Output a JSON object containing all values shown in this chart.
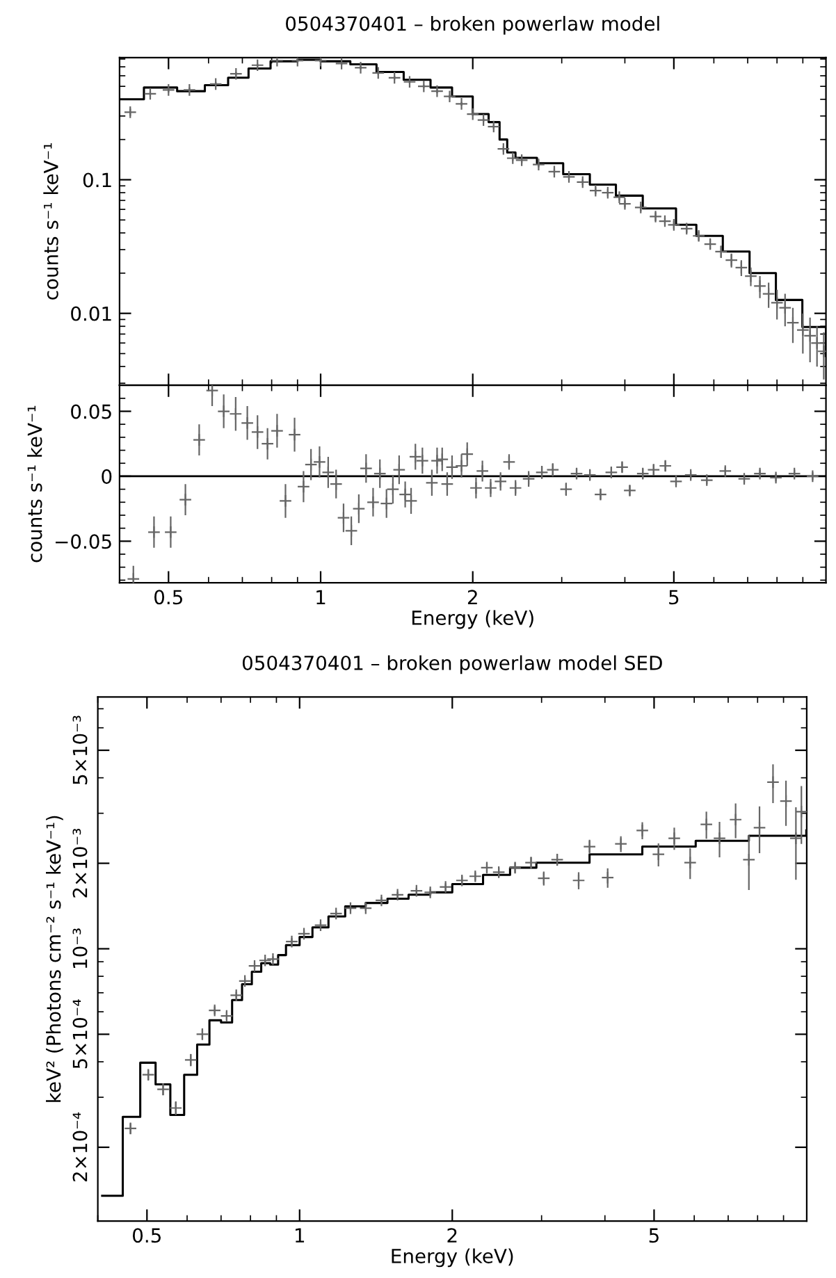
{
  "chart_data": [
    {
      "type": "scatter",
      "title": "0504370401 – broken powerlaw model",
      "ylabel": "counts s⁻¹ keV⁻¹",
      "log": "xy",
      "grid": false,
      "tick_labels": "y",
      "xlim": [
        0.4,
        10
      ],
      "xticks": [
        {
          "value": 0.5,
          "label": null
        },
        {
          "value": 1,
          "label": null
        },
        {
          "value": 2,
          "label": null
        },
        {
          "value": 5,
          "label": null
        }
      ],
      "ylim": [
        0.0029,
        0.82
      ],
      "yticks": [
        0.01,
        0.1
      ],
      "series": [
        {
          "type": "step",
          "color": "#000000",
          "x": [
            0.4,
            0.447,
            0.52,
            0.59,
            0.656,
            0.72,
            0.796,
            0.9,
            1.0,
            1.145,
            1.29,
            1.46,
            1.65,
            1.82,
            2.0,
            2.15,
            2.26,
            2.34,
            2.43,
            2.68,
            3.02,
            3.41,
            3.84,
            4.34,
            5.05,
            5.54,
            6.25,
            7.06,
            7.96,
            8.98,
            10.0
          ],
          "values": [
            0.4,
            0.49,
            0.46,
            0.51,
            0.58,
            0.68,
            0.77,
            0.79,
            0.77,
            0.73,
            0.64,
            0.56,
            0.49,
            0.42,
            0.31,
            0.27,
            0.2,
            0.16,
            0.146,
            0.133,
            0.11,
            0.092,
            0.076,
            0.061,
            0.046,
            0.038,
            0.029,
            0.02,
            0.0126,
            0.0079,
            0.0048
          ]
        },
        {
          "color": "#666666",
          "marker": "cross",
          "x": [
            0.42,
            0.46,
            0.5,
            0.55,
            0.62,
            0.68,
            0.75,
            0.82,
            0.9,
            1.0,
            1.1,
            1.2,
            1.3,
            1.4,
            1.5,
            1.6,
            1.7,
            1.8,
            1.9,
            2.0,
            2.1,
            2.2,
            2.3,
            2.4,
            2.5,
            2.7,
            2.9,
            3.1,
            3.3,
            3.5,
            3.7,
            3.9,
            4.0,
            4.3,
            4.6,
            4.8,
            5.0,
            5.3,
            5.6,
            5.9,
            6.2,
            6.5,
            6.8,
            7.1,
            7.4,
            7.7,
            8.0,
            8.3,
            8.6,
            9.0,
            9.3,
            9.6,
            9.9
          ],
          "values": [
            0.32,
            0.44,
            0.47,
            0.47,
            0.52,
            0.62,
            0.72,
            0.78,
            0.78,
            0.78,
            0.74,
            0.69,
            0.63,
            0.58,
            0.54,
            0.5,
            0.46,
            0.42,
            0.37,
            0.31,
            0.28,
            0.25,
            0.17,
            0.145,
            0.14,
            0.13,
            0.115,
            0.105,
            0.096,
            0.083,
            0.08,
            0.074,
            0.066,
            0.062,
            0.053,
            0.049,
            0.046,
            0.043,
            0.038,
            0.033,
            0.029,
            0.025,
            0.022,
            0.019,
            0.016,
            0.014,
            0.012,
            0.011,
            0.0085,
            0.0075,
            0.0068,
            0.006,
            0.0052
          ],
          "errors": [
            0.02,
            0.02,
            0.02,
            0.02,
            0.02,
            0.02,
            0.02,
            0.02,
            0.02,
            0.02,
            0.02,
            0.02,
            0.02,
            0.02,
            0.015,
            0.015,
            0.015,
            0.012,
            0.012,
            0.01,
            0.01,
            0.01,
            0.008,
            0.007,
            0.007,
            0.006,
            0.006,
            0.005,
            0.005,
            0.005,
            0.005,
            0.004,
            0.004,
            0.004,
            0.004,
            0.003,
            0.003,
            0.003,
            0.003,
            0.003,
            0.003,
            0.003,
            0.003,
            0.003,
            0.003,
            0.003,
            0.003,
            0.003,
            0.0025,
            0.0025,
            0.0025,
            0.002,
            0.002
          ]
        }
      ]
    },
    {
      "type": "scatter",
      "xlabel": "Energy (keV)",
      "ylabel": "counts s⁻¹ keV⁻¹",
      "log": "x",
      "grid": false,
      "xlim": [
        0.4,
        10
      ],
      "xticks": [
        0.5,
        1,
        2,
        5
      ],
      "ylim": [
        -0.082,
        0.07
      ],
      "yticks": [
        {
          "value": -0.05,
          "label": "−0.05"
        },
        0,
        0.05
      ],
      "ref_lines": [
        {
          "axis": "y",
          "value": 0,
          "color": "#000000"
        }
      ],
      "series": [
        {
          "color": "#666666",
          "marker": "cross",
          "x": [
            0.426,
            0.468,
            0.505,
            0.54,
            0.575,
            0.61,
            0.643,
            0.679,
            0.716,
            0.75,
            0.785,
            0.82,
            0.852,
            0.888,
            0.925,
            0.957,
            0.995,
            1.035,
            1.073,
            1.11,
            1.15,
            1.19,
            1.23,
            1.27,
            1.31,
            1.35,
            1.39,
            1.43,
            1.47,
            1.51,
            1.54,
            1.59,
            1.66,
            1.7,
            1.74,
            1.78,
            1.82,
            1.9,
            1.95,
            2.03,
            2.09,
            2.17,
            2.27,
            2.36,
            2.43,
            2.58,
            2.74,
            2.88,
            3.06,
            3.21,
            3.41,
            3.58,
            3.76,
            3.95,
            4.09,
            4.34,
            4.56,
            4.81,
            5.05,
            5.4,
            5.81,
            6.32,
            6.89,
            7.4,
            7.96,
            8.66,
            9.41
          ],
          "values": [
            -0.079,
            -0.043,
            -0.043,
            -0.018,
            0.028,
            0.066,
            0.05,
            0.048,
            0.041,
            0.034,
            0.025,
            0.035,
            -0.019,
            0.032,
            -0.008,
            0.009,
            0.011,
            0.003,
            -0.006,
            -0.032,
            -0.042,
            -0.025,
            0.006,
            -0.02,
            0.002,
            -0.021,
            -0.01,
            0.005,
            -0.014,
            -0.019,
            0.015,
            0.012,
            -0.005,
            0.012,
            0.013,
            -0.006,
            0.007,
            0.008,
            0.017,
            -0.009,
            0.004,
            -0.009,
            -0.004,
            0.011,
            -0.009,
            -0.002,
            0.003,
            0.005,
            -0.01,
            0.002,
            0.001,
            -0.014,
            0.003,
            0.007,
            -0.011,
            0.002,
            0.005,
            0.008,
            -0.004,
            0.001,
            -0.003,
            0.004,
            -0.002,
            0.002,
            -0.001,
            0.002,
            0.0
          ],
          "errors": [
            0.01,
            0.012,
            0.012,
            0.012,
            0.012,
            0.012,
            0.013,
            0.013,
            0.013,
            0.013,
            0.012,
            0.013,
            0.013,
            0.013,
            0.012,
            0.012,
            0.012,
            0.012,
            0.011,
            0.011,
            0.011,
            0.011,
            0.011,
            0.011,
            0.011,
            0.011,
            0.011,
            0.011,
            0.01,
            0.01,
            0.01,
            0.01,
            0.01,
            0.01,
            0.009,
            0.009,
            0.009,
            0.009,
            0.009,
            0.008,
            0.008,
            0.007,
            0.007,
            0.006,
            0.006,
            0.006,
            0.005,
            0.005,
            0.005,
            0.004,
            0.004,
            0.004,
            0.004,
            0.004,
            0.004,
            0.004,
            0.004,
            0.004,
            0.003,
            0.003,
            0.003,
            0.003,
            0.003,
            0.003,
            0.003,
            0.003,
            0.003
          ]
        }
      ]
    },
    {
      "type": "scatter",
      "title": "0504370401 – broken powerlaw model SED",
      "xlabel": "Energy (keV)",
      "ylabel": "keV² (Photons cm⁻² s⁻¹ keV⁻¹)",
      "log": "xy",
      "grid": false,
      "xlim": [
        0.4,
        10
      ],
      "xticks": [
        0.5,
        1,
        2,
        5
      ],
      "ylim": [
        0.00011,
        0.0077
      ],
      "yticks": [
        {
          "value": 0.0002,
          "label": "2×10⁻⁴"
        },
        {
          "value": 0.0005,
          "label": "5×10⁻⁴"
        },
        {
          "value": 0.001,
          "label": "10⁻³"
        },
        {
          "value": 0.002,
          "label": "2×10⁻³"
        },
        {
          "value": 0.005,
          "label": "5×10⁻³"
        }
      ],
      "series": [
        {
          "type": "step",
          "color": "#000000",
          "x": [
            0.408,
            0.448,
            0.485,
            0.52,
            0.556,
            0.592,
            0.628,
            0.664,
            0.7,
            0.736,
            0.77,
            0.805,
            0.84,
            0.875,
            0.907,
            0.94,
            1.0,
            1.06,
            1.14,
            1.23,
            1.35,
            1.49,
            1.64,
            1.81,
            2.0,
            2.3,
            2.6,
            2.93,
            3.73,
            4.74,
            6.04,
            7.69,
            9.98
          ],
          "values": [
            0.000135,
            0.000256,
            0.000397,
            0.000333,
            0.00026,
            0.00036,
            0.00046,
            0.00056,
            0.00055,
            0.00066,
            0.00075,
            0.00083,
            0.00089,
            0.00088,
            0.00095,
            0.00103,
            0.0011,
            0.00119,
            0.0013,
            0.00141,
            0.00145,
            0.0015,
            0.00155,
            0.00158,
            0.00169,
            0.00182,
            0.00193,
            0.00201,
            0.00215,
            0.00229,
            0.0024,
            0.0025,
            0.00261
          ]
        },
        {
          "color": "#666666",
          "marker": "cross",
          "x": [
            0.464,
            0.503,
            0.538,
            0.57,
            0.61,
            0.643,
            0.68,
            0.718,
            0.75,
            0.78,
            0.815,
            0.855,
            0.886,
            0.965,
            1.02,
            1.1,
            1.18,
            1.26,
            1.35,
            1.45,
            1.56,
            1.7,
            1.81,
            1.94,
            2.09,
            2.22,
            2.34,
            2.47,
            2.66,
            2.86,
            3.03,
            3.22,
            3.55,
            3.73,
            4.05,
            4.3,
            4.74,
            5.1,
            5.48,
            5.89,
            6.34,
            6.73,
            7.24,
            7.69,
            8.07,
            8.58,
            9.1,
            9.52,
            9.76
          ],
          "values": [
            0.000233,
            0.00036,
            0.00032,
            0.000275,
            0.000406,
            0.0005,
            0.000607,
            0.00058,
            0.000686,
            0.00077,
            0.00087,
            0.00091,
            0.00092,
            0.00106,
            0.00113,
            0.00121,
            0.00133,
            0.00139,
            0.00139,
            0.00148,
            0.00155,
            0.0016,
            0.00158,
            0.00165,
            0.00174,
            0.0018,
            0.00193,
            0.00186,
            0.00193,
            0.00201,
            0.00177,
            0.00206,
            0.00174,
            0.00229,
            0.00178,
            0.00234,
            0.00261,
            0.00215,
            0.00245,
            0.00201,
            0.00274,
            0.00245,
            0.00285,
            0.00206,
            0.00267,
            0.00386,
            0.00331,
            0.00245,
            0.00304
          ],
          "errors": [
            1e-05,
            1.5e-05,
            1.5e-05,
            1.5e-05,
            2e-05,
            2e-05,
            2e-05,
            2e-05,
            2e-05,
            2e-05,
            2e-05,
            2e-05,
            2e-05,
            3e-05,
            3e-05,
            3e-05,
            3e-05,
            3e-05,
            3e-05,
            4e-05,
            4e-05,
            4e-05,
            5e-05,
            5e-05,
            6e-05,
            6e-05,
            7e-05,
            7e-05,
            8e-05,
            9e-05,
            0.0001,
            0.0001,
            0.00012,
            0.00013,
            0.00014,
            0.00015,
            0.00018,
            0.0002,
            0.00022,
            0.00025,
            0.0003,
            0.00035,
            0.0004,
            0.00045,
            0.0005,
            0.0006,
            0.0006,
            0.0007,
            0.0007
          ]
        }
      ]
    }
  ]
}
